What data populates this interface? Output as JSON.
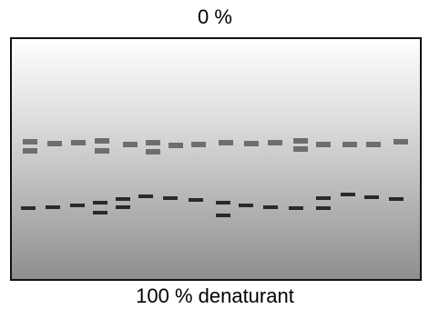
{
  "top_label": "0 %",
  "bottom_label": "100 % denaturant"
}
